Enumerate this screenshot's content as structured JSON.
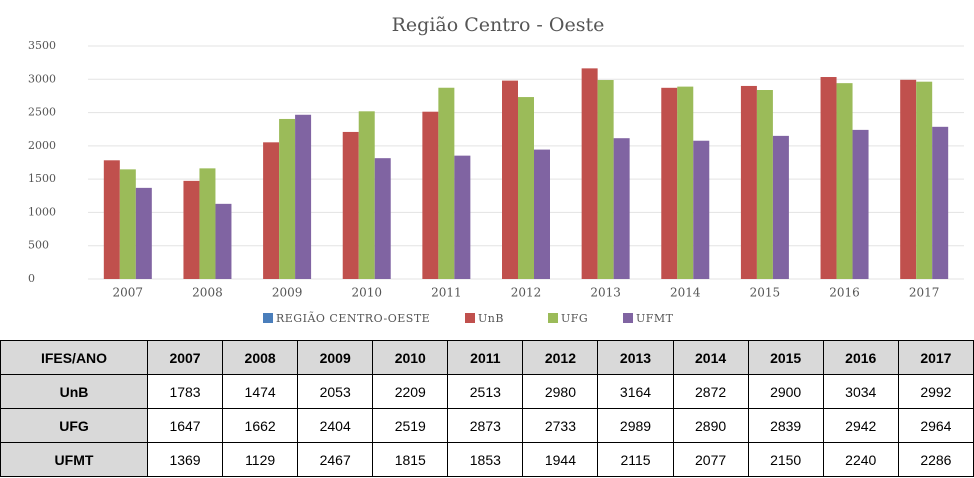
{
  "chart_data": {
    "type": "bar",
    "title": "Região Centro - Oeste",
    "categories": [
      "2007",
      "2008",
      "2009",
      "2010",
      "2011",
      "2012",
      "2013",
      "2014",
      "2015",
      "2016",
      "2017"
    ],
    "series": [
      {
        "name": "REGIÃO CENTRO-OESTE",
        "color": "#4a7ebb",
        "values": [
          null,
          null,
          null,
          null,
          null,
          null,
          null,
          null,
          null,
          null,
          null
        ]
      },
      {
        "name": "UnB",
        "color": "#c0504d",
        "values": [
          1783,
          1474,
          2053,
          2209,
          2513,
          2980,
          3164,
          2872,
          2900,
          3034,
          2992
        ]
      },
      {
        "name": "UFG",
        "color": "#9bbb59",
        "values": [
          1647,
          1662,
          2404,
          2519,
          2873,
          2733,
          2989,
          2890,
          2839,
          2942,
          2964
        ]
      },
      {
        "name": "UFMT",
        "color": "#8064a2",
        "values": [
          1369,
          1129,
          2467,
          1815,
          1853,
          1944,
          2115,
          2077,
          2150,
          2240,
          2286
        ]
      }
    ],
    "ylim": [
      0,
      3500
    ],
    "yticks": [
      0,
      500,
      1000,
      1500,
      2000,
      2500,
      3000,
      3500
    ],
    "grid": true,
    "legend": "bottom"
  },
  "table": {
    "header": "IFES/ANO"
  }
}
